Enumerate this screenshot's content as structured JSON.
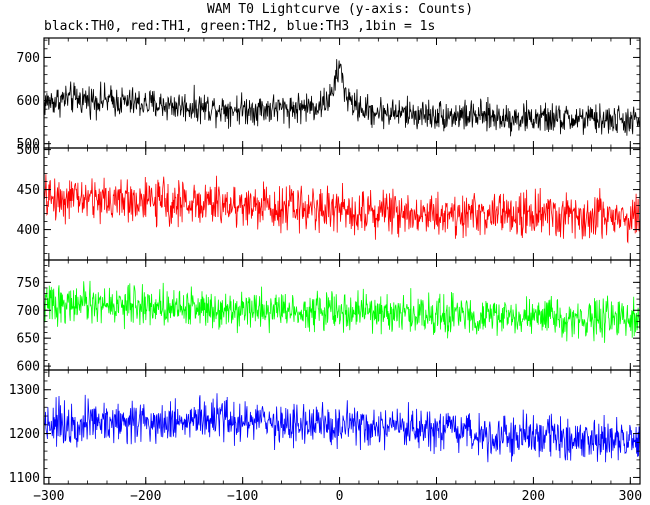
{
  "chart_data": {
    "type": "line",
    "title": "WAM T0 Lightcurve (y-axis: Counts)",
    "subtitle": "black:TH0, red:TH1, green:TH2, blue:TH3 ,1bin = 1s",
    "x_range": [
      -305,
      310
    ],
    "x_ticks": [
      -300,
      -200,
      -100,
      0,
      100,
      200,
      300
    ],
    "x_tick_labels": [
      "−300",
      "−200",
      "−100",
      "0",
      "100",
      "200",
      "300"
    ],
    "grid": false,
    "panels": [
      {
        "series_name": "TH0",
        "color": "#000000",
        "ylim": [
          490,
          745
        ],
        "y_ticks": [
          500,
          600,
          700
        ],
        "y_tick_labels": [
          "500",
          "600",
          "700"
        ],
        "profile": [
          [
            -305,
            595
          ],
          [
            -280,
            605
          ],
          [
            -240,
            600
          ],
          [
            -200,
            592
          ],
          [
            -150,
            585
          ],
          [
            -100,
            580
          ],
          [
            -50,
            582
          ],
          [
            -20,
            588
          ],
          [
            -8,
            610
          ],
          [
            -3,
            655
          ],
          [
            0,
            685
          ],
          [
            4,
            635
          ],
          [
            10,
            595
          ],
          [
            30,
            575
          ],
          [
            80,
            568
          ],
          [
            150,
            563
          ],
          [
            200,
            558
          ],
          [
            260,
            556
          ],
          [
            310,
            552
          ]
        ],
        "noise": 22
      },
      {
        "series_name": "TH1",
        "color": "#ff0000",
        "ylim": [
          362,
          502
        ],
        "y_ticks": [
          400,
          450,
          500
        ],
        "y_tick_labels": [
          "400",
          "450",
          "500"
        ],
        "profile": [
          [
            -305,
            440
          ],
          [
            -250,
            438
          ],
          [
            -150,
            433
          ],
          [
            -50,
            428
          ],
          [
            0,
            425
          ],
          [
            100,
            420
          ],
          [
            200,
            418
          ],
          [
            310,
            415
          ]
        ],
        "noise": 17
      },
      {
        "series_name": "TH2",
        "color": "#00ff00",
        "ylim": [
          593,
          790
        ],
        "y_ticks": [
          600,
          650,
          700,
          750
        ],
        "y_tick_labels": [
          "600",
          "650",
          "700",
          "750"
        ],
        "profile": [
          [
            -305,
            712
          ],
          [
            -200,
            708
          ],
          [
            -100,
            703
          ],
          [
            0,
            698
          ],
          [
            100,
            692
          ],
          [
            200,
            687
          ],
          [
            310,
            682
          ]
        ],
        "noise": 21
      },
      {
        "series_name": "TH3",
        "color": "#0000ff",
        "ylim": [
          1085,
          1345
        ],
        "y_ticks": [
          1100,
          1200,
          1300
        ],
        "y_tick_labels": [
          "1100",
          "1200",
          "1300"
        ],
        "profile": [
          [
            -305,
            1225
          ],
          [
            -200,
            1228
          ],
          [
            -130,
            1232
          ],
          [
            -50,
            1222
          ],
          [
            50,
            1210
          ],
          [
            150,
            1198
          ],
          [
            250,
            1188
          ],
          [
            310,
            1180
          ]
        ],
        "noise": 30
      }
    ]
  }
}
